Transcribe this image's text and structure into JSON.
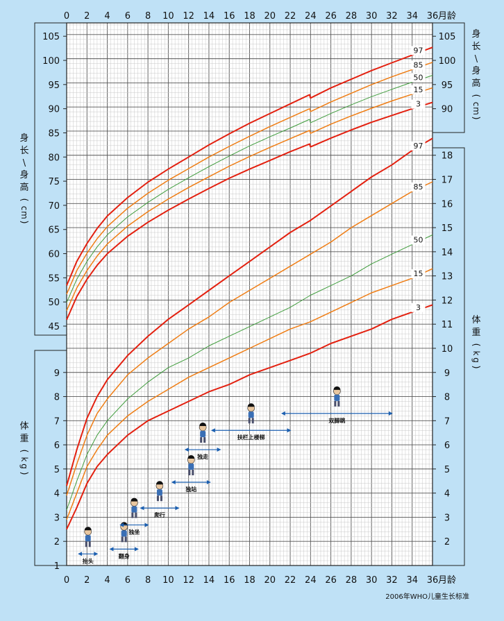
{
  "chart_data": {
    "type": "line",
    "x_ticks": [
      0,
      2,
      4,
      6,
      8,
      10,
      12,
      14,
      16,
      18,
      20,
      22,
      24,
      26,
      28,
      30,
      32,
      34,
      36
    ],
    "x_unit": "月龄",
    "length_axis": {
      "label": "身长\\身高（cm）",
      "left_ticks": [
        45,
        50,
        55,
        60,
        65,
        70,
        75,
        80,
        85,
        90,
        95,
        100,
        105
      ],
      "right_ticks": [
        90,
        95,
        100,
        105
      ],
      "ylim": [
        45,
        107
      ]
    },
    "weight_axis": {
      "label": "体重（kg）",
      "left_ticks": [
        1,
        2,
        3,
        4,
        5,
        6,
        7,
        8,
        9
      ],
      "right_ticks": [
        2,
        3,
        4,
        5,
        6,
        7,
        8,
        9,
        10,
        11,
        12,
        13,
        14,
        15,
        16,
        17,
        18
      ],
      "ylim": [
        1,
        18
      ]
    },
    "length_series": [
      {
        "name": "97",
        "color": "#e3200f",
        "x": [
          0,
          1,
          2,
          3,
          4,
          6,
          8,
          10,
          12,
          14,
          16,
          18,
          20,
          22,
          23.9,
          24,
          26,
          28,
          30,
          32,
          34,
          36
        ],
        "values": [
          53.4,
          58.4,
          62.1,
          65.2,
          67.8,
          71.6,
          74.8,
          77.5,
          80.0,
          82.5,
          84.8,
          87.0,
          89.0,
          91.0,
          92.9,
          92.2,
          94.3,
          96.1,
          97.9,
          99.5,
          101.1,
          102.7
        ]
      },
      {
        "name": "85",
        "color": "#ef7d14",
        "x": [
          0,
          1,
          2,
          3,
          4,
          6,
          8,
          10,
          12,
          14,
          16,
          18,
          20,
          22,
          23.9,
          24,
          26,
          28,
          30,
          32,
          34,
          36
        ],
        "values": [
          51.6,
          56.5,
          60.1,
          63.1,
          65.6,
          69.4,
          72.5,
          75.2,
          77.6,
          80.0,
          82.2,
          84.3,
          86.3,
          88.2,
          90.0,
          89.4,
          91.4,
          93.2,
          95.0,
          96.6,
          98.1,
          99.6
        ]
      },
      {
        "name": "50",
        "color": "#3f9c3c",
        "x": [
          0,
          1,
          2,
          3,
          4,
          6,
          8,
          10,
          12,
          14,
          16,
          18,
          20,
          22,
          23.9,
          24,
          26,
          28,
          30,
          32,
          34,
          36
        ],
        "values": [
          49.9,
          54.7,
          58.4,
          61.4,
          63.9,
          67.6,
          70.6,
          73.3,
          75.7,
          78.0,
          80.2,
          82.3,
          84.2,
          86.0,
          87.8,
          87.1,
          89.0,
          90.8,
          92.5,
          94.0,
          95.5,
          96.9
        ]
      },
      {
        "name": "15",
        "color": "#ef7d14",
        "x": [
          0,
          1,
          2,
          3,
          4,
          6,
          8,
          10,
          12,
          14,
          16,
          18,
          20,
          22,
          23.9,
          24,
          26,
          28,
          30,
          32,
          34,
          36
        ],
        "values": [
          48.2,
          52.9,
          56.5,
          59.5,
          62.0,
          65.7,
          68.7,
          71.3,
          73.7,
          75.9,
          78.1,
          80.1,
          82.0,
          83.8,
          85.5,
          84.9,
          86.8,
          88.5,
          90.1,
          91.6,
          93.0,
          94.3
        ]
      },
      {
        "name": "3",
        "color": "#e3200f",
        "x": [
          0,
          1,
          2,
          3,
          4,
          6,
          8,
          10,
          12,
          14,
          16,
          18,
          20,
          22,
          23.9,
          24,
          26,
          28,
          30,
          32,
          34,
          36
        ],
        "values": [
          46.3,
          51.1,
          54.7,
          57.6,
          60.0,
          63.6,
          66.5,
          69.0,
          71.3,
          73.5,
          75.6,
          77.5,
          79.3,
          81.1,
          82.7,
          82.1,
          83.9,
          85.6,
          87.2,
          88.6,
          90.0,
          91.3
        ]
      }
    ],
    "weight_series": [
      {
        "name": "97",
        "color": "#e3200f",
        "x": [
          0,
          1,
          2,
          3,
          4,
          6,
          8,
          10,
          12,
          14,
          16,
          18,
          20,
          22,
          24,
          26,
          28,
          30,
          32,
          34,
          36
        ],
        "values": [
          4.3,
          5.8,
          7.1,
          8.0,
          8.7,
          9.7,
          10.5,
          11.2,
          11.8,
          12.4,
          13.0,
          13.6,
          14.2,
          14.8,
          15.3,
          15.9,
          16.5,
          17.1,
          17.6,
          18.2,
          18.7
        ]
      },
      {
        "name": "85",
        "color": "#ef7d14",
        "x": [
          0,
          1,
          2,
          3,
          4,
          6,
          8,
          10,
          12,
          14,
          16,
          18,
          20,
          22,
          24,
          26,
          28,
          30,
          32,
          34,
          36
        ],
        "values": [
          3.9,
          5.2,
          6.4,
          7.3,
          7.9,
          8.9,
          9.6,
          10.2,
          10.8,
          11.3,
          11.9,
          12.4,
          12.9,
          13.4,
          13.9,
          14.4,
          15.0,
          15.5,
          16.0,
          16.5,
          16.9
        ]
      },
      {
        "name": "50",
        "color": "#3f9c3c",
        "x": [
          0,
          1,
          2,
          3,
          4,
          6,
          8,
          10,
          12,
          14,
          16,
          18,
          20,
          22,
          24,
          26,
          28,
          30,
          32,
          34,
          36
        ],
        "values": [
          3.3,
          4.5,
          5.6,
          6.4,
          7.0,
          7.9,
          8.6,
          9.2,
          9.6,
          10.1,
          10.5,
          10.9,
          11.3,
          11.7,
          12.2,
          12.6,
          13.0,
          13.5,
          13.9,
          14.3,
          14.7
        ]
      },
      {
        "name": "15",
        "color": "#ef7d14",
        "x": [
          0,
          1,
          2,
          3,
          4,
          6,
          8,
          10,
          12,
          14,
          16,
          18,
          20,
          22,
          24,
          26,
          28,
          30,
          32,
          34,
          36
        ],
        "values": [
          2.9,
          4.0,
          5.1,
          5.8,
          6.4,
          7.2,
          7.8,
          8.3,
          8.8,
          9.2,
          9.6,
          10.0,
          10.4,
          10.8,
          11.1,
          11.5,
          11.9,
          12.3,
          12.6,
          12.9,
          13.3
        ]
      },
      {
        "name": "3",
        "color": "#e3200f",
        "x": [
          0,
          1,
          2,
          3,
          4,
          6,
          8,
          10,
          12,
          14,
          16,
          18,
          20,
          22,
          24,
          26,
          28,
          30,
          32,
          34,
          36
        ],
        "values": [
          2.5,
          3.4,
          4.4,
          5.1,
          5.6,
          6.4,
          7.0,
          7.4,
          7.8,
          8.2,
          8.5,
          8.9,
          9.2,
          9.5,
          9.8,
          10.2,
          10.5,
          10.8,
          11.2,
          11.5,
          11.8
        ]
      }
    ],
    "milestones": [
      {
        "label": "抬头",
        "start": 1.1,
        "end": 3.1,
        "level": 1.48,
        "figure": "lifting-head-figure"
      },
      {
        "label": "翻身",
        "start": 4.2,
        "end": 7.1,
        "level": 1.68,
        "figure": "rolling-over-figure"
      },
      {
        "label": "独坐",
        "start": 5.2,
        "end": 8.1,
        "level": 2.68,
        "figure": "sitting-figure"
      },
      {
        "label": "爬行",
        "start": 7.2,
        "end": 11.1,
        "level": 3.38,
        "figure": "crawling-figure"
      },
      {
        "label": "独站",
        "start": 10.3,
        "end": 14.2,
        "level": 4.45,
        "figure": "standing-figure"
      },
      {
        "label": "独走",
        "start": 11.6,
        "end": 15.2,
        "level": 5.8,
        "figure": "walking-figure"
      },
      {
        "label": "扶栏上楼梯",
        "start": 14.2,
        "end": 22.1,
        "level": 6.6,
        "figure": "climbing-stairs-figure"
      },
      {
        "label": "双脚跳",
        "start": 21.1,
        "end": 32.1,
        "level": 7.3,
        "figure": "jumping-figure"
      }
    ],
    "footer_note": "2006年WHO儿童生长标准"
  }
}
